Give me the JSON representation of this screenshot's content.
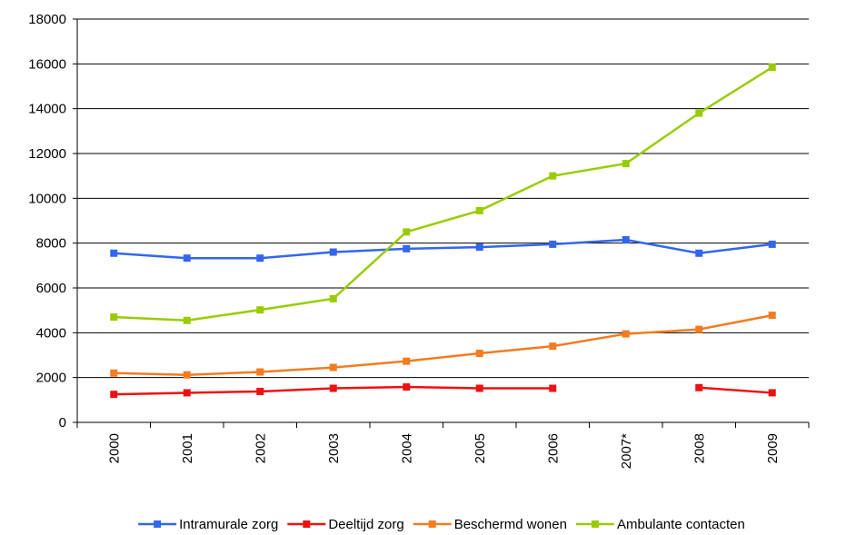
{
  "chart_data": {
    "type": "line",
    "categories": [
      "2000",
      "2001",
      "2002",
      "2003",
      "2004",
      "2005",
      "2006",
      "2007*",
      "2008",
      "2009"
    ],
    "series": [
      {
        "name": "Intramurale zorg",
        "color": "#3366ee",
        "values": [
          7550,
          7330,
          7330,
          7600,
          7750,
          7820,
          7950,
          8150,
          7550,
          7950
        ]
      },
      {
        "name": "Deeltijd zorg",
        "color": "#ee1111",
        "values": [
          1250,
          1320,
          1380,
          1520,
          1580,
          1520,
          1520,
          null,
          1550,
          1320
        ]
      },
      {
        "name": "Beschermd wonen",
        "color": "#f47b20",
        "values": [
          2200,
          2120,
          2250,
          2450,
          2730,
          3080,
          3400,
          3950,
          4150,
          4780
        ]
      },
      {
        "name": "Ambulante contacten",
        "color": "#99cc00",
        "values": [
          4700,
          4550,
          5020,
          5520,
          8500,
          9450,
          11000,
          11550,
          13800,
          15850
        ]
      }
    ],
    "ylim": [
      0,
      18000
    ],
    "yticks": [
      0,
      2000,
      4000,
      6000,
      8000,
      10000,
      12000,
      14000,
      16000,
      18000
    ],
    "grid": true,
    "legend": "bottom"
  }
}
